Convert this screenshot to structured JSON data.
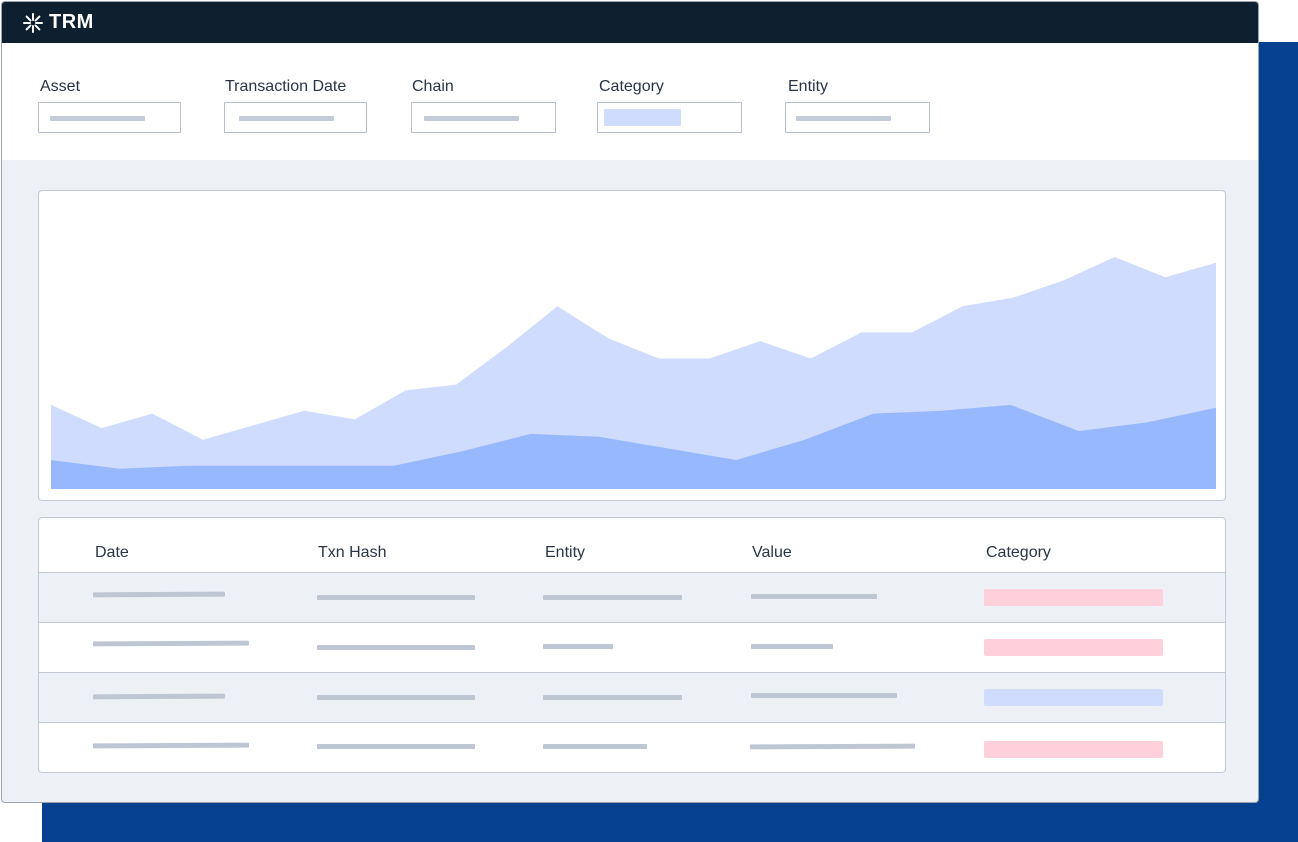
{
  "app": {
    "logo_text": "TRM"
  },
  "filters": [
    {
      "label": "Asset",
      "kind": "placeholder"
    },
    {
      "label": "Transaction Date",
      "kind": "placeholder"
    },
    {
      "label": "Chain",
      "kind": "placeholder"
    },
    {
      "label": "Category",
      "kind": "chip"
    },
    {
      "label": "Entity",
      "kind": "placeholder"
    }
  ],
  "chart_data": {
    "type": "area",
    "title": "",
    "xlabel": "",
    "ylabel": "",
    "grid": false,
    "legend": "none",
    "series": [
      {
        "values": [
          29,
          21,
          26,
          17,
          22,
          27,
          24,
          34,
          36,
          49,
          63,
          52,
          45,
          45,
          51,
          45,
          54,
          54,
          63,
          66,
          72,
          80,
          73,
          78
        ],
        "color": "#d0dcfd"
      },
      {
        "values": [
          10,
          7,
          8,
          8,
          8,
          8,
          13,
          19,
          18,
          14,
          10,
          17,
          26,
          27,
          29,
          20,
          23,
          28
        ],
        "color": "#98b8fd"
      }
    ],
    "ylim": [
      0,
      100
    ]
  },
  "table": {
    "headers": [
      "Date",
      "Txn Hash",
      "Entity",
      "Value",
      "Category"
    ],
    "rows": [
      {
        "category_status": "red"
      },
      {
        "category_status": "red"
      },
      {
        "category_status": "blue"
      },
      {
        "category_status": "red"
      }
    ]
  },
  "colors": {
    "titlebar": "#0e1f2f",
    "backdrop": "#06418f",
    "area_light": "#d0dcfd",
    "area_dark": "#98b8fd",
    "chip_red": "#fdd0db",
    "chip_blue": "#d0dcfd"
  },
  "icons": {
    "logo": "snowflake-asterisk-icon"
  }
}
